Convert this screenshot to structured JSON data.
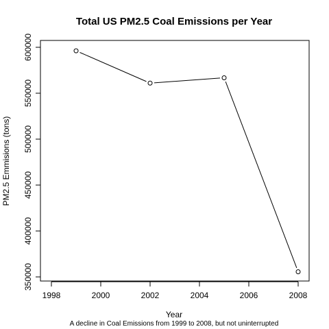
{
  "chart_data": {
    "type": "line",
    "title": "Total US PM2.5 Coal Emissions per Year",
    "subtitle": "A decline in Coal Emissions from 1999 to 2008, but not uninterrupted",
    "xlabel": "Year",
    "ylabel": "PM2.5 Emmisions (tons)",
    "x": [
      1999,
      2002,
      2005,
      2008
    ],
    "y": [
      596200,
      561000,
      566800,
      355600
    ],
    "xlim": [
      1998,
      2008
    ],
    "ylim": [
      350000,
      600000
    ],
    "xticks": [
      1998,
      2000,
      2002,
      2004,
      2006,
      2008
    ],
    "yticks": [
      350000,
      400000,
      450000,
      500000,
      550000,
      600000
    ],
    "xtick_labels": [
      "1998",
      "2000",
      "2002",
      "2004",
      "2006",
      "2008"
    ],
    "ytick_labels": [
      "350000",
      "400000",
      "450000",
      "500000",
      "550000",
      "600000"
    ],
    "grid": false,
    "marker": "open-circle",
    "line_color": "#000000"
  }
}
